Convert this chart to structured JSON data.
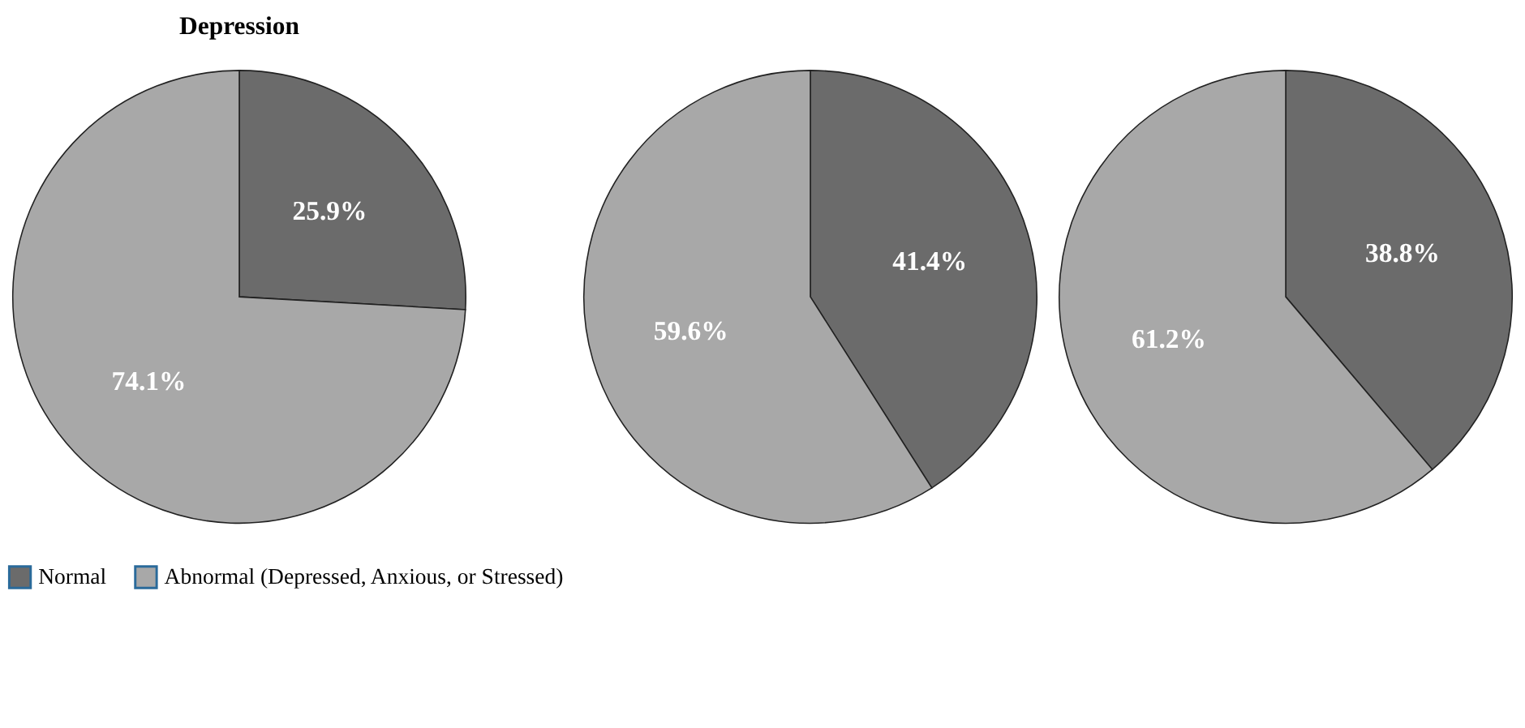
{
  "chart_data": [
    {
      "type": "pie",
      "title": "Depression",
      "categories": [
        "Normal",
        "Abnormal (Depressed, Anxious, or Stressed)"
      ],
      "values": [
        25.9,
        74.1
      ],
      "value_labels": [
        "25.9%",
        "74.1%"
      ],
      "colors": [
        "#6b6b6b",
        "#a8a8a8"
      ],
      "legend": "bottom"
    },
    {
      "type": "pie",
      "categories": [
        null,
        null
      ],
      "values": [
        41.4,
        59.6
      ],
      "value_labels": [
        "41.4%",
        "59.6%"
      ],
      "colors": [
        "#6b6b6b",
        "#a8a8a8"
      ]
    },
    {
      "type": "pie",
      "categories": [
        null,
        null
      ],
      "values": [
        38.8,
        61.2
      ],
      "value_labels": [
        "38.8%",
        "61.2%"
      ],
      "colors": [
        "#6b6b6b",
        "#a8a8a8"
      ]
    }
  ]
}
